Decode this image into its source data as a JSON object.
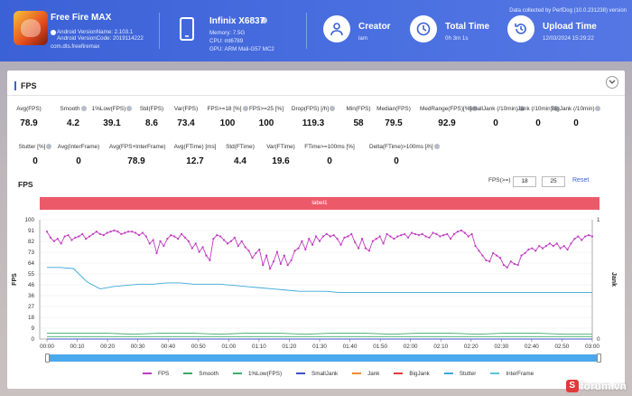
{
  "header": {
    "app_name": "Free Fire MAX",
    "android_version_name": "Android VersionName: 2.103.1",
    "android_version_code": "Android VersionCode: 2019114222",
    "package": "com.dts.freefiremax",
    "device_name": "Infinix X6837",
    "memory": "Memory: 7.5G",
    "cpu": "CPU: mt6789",
    "gpu": "GPU: ARM Mali-G57 MC2",
    "creator_title": "Creator",
    "creator_value": "lam",
    "total_time_title": "Total Time",
    "total_time_value": "0h 3m 1s",
    "upload_time_title": "Upload Time",
    "upload_time_value": "12/03/2024 15:29:22",
    "collected_by": "Data collected by PerfDog (10.0.231238) version",
    "accent_color": "#3b61d6"
  },
  "panel": {
    "section_title": "FPS",
    "stats_row1": [
      {
        "label": "Avg(FPS)",
        "value": "78.9"
      },
      {
        "label": "Smooth",
        "value": "4.2",
        "help": true
      },
      {
        "label": "1%Low(FPS)",
        "value": "39.1",
        "help": true
      },
      {
        "label": "Std(FPS)",
        "value": "8.6"
      },
      {
        "label": "Var(FPS)",
        "value": "73.4"
      },
      {
        "label": "FPS>=18 [%]",
        "value": "100",
        "help": true
      },
      {
        "label": "FPS>=25 [%]",
        "value": "100"
      },
      {
        "label": "Drop(FPS) [/h]",
        "value": "119.3",
        "help": true
      },
      {
        "label": "Min(FPS)",
        "value": "58"
      },
      {
        "label": "Median(FPS)",
        "value": "79.5"
      },
      {
        "label": "MedRange(FPS)[%]",
        "value": "92.9",
        "help": true
      },
      {
        "label": "SmallJank (/10min)",
        "value": "0",
        "help": true
      },
      {
        "label": "Jank (/10min)",
        "value": "0",
        "help": true
      },
      {
        "label": "BigJank (/10min)",
        "value": "0",
        "help": true
      }
    ],
    "stats_row2": [
      {
        "label": "Stutter [%]",
        "value": "0",
        "help": true
      },
      {
        "label": "Avg(InterFrame)",
        "value": "0"
      },
      {
        "label": "Avg(FPS+InterFrame)",
        "value": "78.9"
      },
      {
        "label": "Avg(FTime) [ms]",
        "value": "12.7"
      },
      {
        "label": "Std(FTime)",
        "value": "4.4"
      },
      {
        "label": "Var(FTime)",
        "value": "19.6"
      },
      {
        "label": "FTime>=100ms [%]",
        "value": "0"
      },
      {
        "label": "Delta(FTime)>100ms [/h]",
        "value": "0",
        "help": true
      }
    ],
    "chart_title": "FPS",
    "filter_label": "FPS(>=)",
    "filter_min": "18",
    "filter_max": "25",
    "reset_label": "Reset",
    "band_label": "label1"
  },
  "chart_data": {
    "type": "line",
    "ylabel": "FPS",
    "y2label": "Jank",
    "yticks": [
      "100",
      "91",
      "82",
      "73",
      "64",
      "55",
      "46",
      "36",
      "27",
      "18",
      "9",
      "0"
    ],
    "y2ticks": [
      "1",
      "0"
    ],
    "xticks": [
      "00:00",
      "00:10",
      "00:20",
      "00:30",
      "00:40",
      "00:50",
      "01:00",
      "01:10",
      "01:20",
      "01:30",
      "01:40",
      "01:50",
      "02:00",
      "02:10",
      "02:20",
      "02:30",
      "02:40",
      "02:50",
      "03:00"
    ],
    "ylim": [
      0,
      100
    ],
    "series": [
      {
        "name": "FPS",
        "color": "#c23bc2",
        "values": [
          90,
          85,
          82,
          84,
          80,
          86,
          87,
          83,
          85,
          86,
          88,
          84,
          86,
          88,
          90,
          88,
          87,
          89,
          90,
          91,
          90,
          88,
          89,
          90,
          90,
          89,
          87,
          89,
          86,
          80,
          83,
          72,
          82,
          78,
          84,
          87,
          86,
          84,
          88,
          85,
          82,
          76,
          80,
          73,
          77,
          70,
          66,
          84,
          87,
          86,
          83,
          80,
          82,
          85,
          78,
          82,
          77,
          74,
          68,
          72,
          75,
          62,
          70,
          59,
          65,
          73,
          63,
          70,
          62,
          66,
          74,
          76,
          82,
          75,
          84,
          79,
          86,
          82,
          86,
          88,
          86,
          87,
          84,
          79,
          85,
          86,
          88,
          81,
          76,
          84,
          76,
          74,
          82,
          84,
          86,
          80,
          88,
          86,
          84,
          86,
          87,
          88,
          85,
          89,
          88,
          87,
          88,
          86,
          85,
          89,
          88,
          86,
          87,
          88,
          84,
          88,
          90,
          91,
          89,
          86,
          88,
          78,
          74,
          70,
          66,
          65,
          72,
          70,
          68,
          62,
          60,
          65,
          63,
          62,
          70,
          72,
          75,
          76,
          74,
          78,
          76,
          78,
          80,
          78,
          80,
          76,
          78,
          75,
          80,
          84,
          86,
          83,
          86,
          87,
          86
        ]
      },
      {
        "name": "Smooth",
        "color": "#3ea968",
        "values": [
          5,
          5,
          5,
          4,
          5,
          5,
          4,
          5,
          5,
          4,
          5,
          5,
          4,
          5,
          5,
          4,
          5,
          5,
          4,
          4
        ]
      },
      {
        "name": "1%Low(FPS)",
        "color": "#3fae6e",
        "values": [
          2,
          2,
          2,
          2,
          2,
          2,
          2,
          2,
          2,
          2,
          2,
          2,
          2,
          2,
          2,
          2,
          2,
          2,
          2,
          2
        ]
      },
      {
        "name": "SmallJank",
        "color": "#3d50c9",
        "values": [
          0,
          0,
          0,
          0
        ]
      },
      {
        "name": "Jank",
        "color": "#f28b2a",
        "values": [
          0,
          0,
          0,
          0
        ]
      },
      {
        "name": "BigJank",
        "color": "#e33b3b",
        "values": [
          0,
          0,
          0,
          0
        ]
      },
      {
        "name": "Stutter",
        "color": "#3aa8d8",
        "values": [
          60,
          60,
          59,
          48,
          42,
          44,
          45,
          46,
          46,
          47,
          47,
          46,
          46,
          46,
          45,
          44,
          43,
          42,
          41,
          40,
          40,
          40,
          39,
          39,
          39,
          39,
          39,
          39,
          39,
          39,
          39,
          39,
          39,
          39,
          39,
          39,
          39,
          39,
          39,
          39,
          39,
          39
        ]
      },
      {
        "name": "InterFrame",
        "color": "#5ec2d6",
        "values": [
          0,
          0,
          0,
          0
        ]
      }
    ]
  },
  "watermark": {
    "s": "S",
    "text": "forum.vn"
  }
}
